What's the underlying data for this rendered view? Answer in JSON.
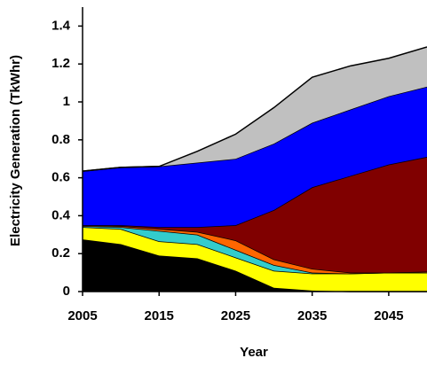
{
  "chart_data": {
    "type": "stacked_area",
    "x_label": "Year",
    "y_label": "Electricity Generation (TkWhr)",
    "x": [
      2005,
      2010,
      2015,
      2020,
      2025,
      2030,
      2035,
      2040,
      2045,
      2050
    ],
    "xlim": [
      2005,
      2050
    ],
    "xticks": [
      2005,
      2015,
      2025,
      2035,
      2045
    ],
    "ylim": [
      0,
      1.5
    ],
    "yticks": [
      0,
      0.2,
      0.4,
      0.6,
      0.8,
      1,
      1.2,
      1.4
    ],
    "series": [
      {
        "color": "#000000",
        "values": [
          0.275,
          0.25,
          0.19,
          0.175,
          0.11,
          0.02,
          0.005,
          0,
          0,
          0
        ]
      },
      {
        "color": "#ffff00",
        "values": [
          0.065,
          0.08,
          0.075,
          0.075,
          0.07,
          0.09,
          0.09,
          0.095,
          0.1,
          0.1
        ]
      },
      {
        "color": "#33cccc",
        "values": [
          0.005,
          0.01,
          0.055,
          0.05,
          0.04,
          0.03,
          0.005,
          0,
          0,
          0
        ]
      },
      {
        "color": "#ff6600",
        "values": [
          0.005,
          0.005,
          0.01,
          0.015,
          0.05,
          0.03,
          0.02,
          0.005,
          0,
          0.005
        ]
      },
      {
        "color": "#800000",
        "values": [
          0,
          0.005,
          0.01,
          0.025,
          0.08,
          0.26,
          0.43,
          0.51,
          0.57,
          0.605
        ]
      },
      {
        "color": "#0000ff",
        "values": [
          0.285,
          0.305,
          0.32,
          0.34,
          0.35,
          0.35,
          0.34,
          0.35,
          0.36,
          0.37
        ]
      },
      {
        "color": "#c0c0c0",
        "values": [
          0,
          0,
          0,
          0.06,
          0.13,
          0.19,
          0.24,
          0.23,
          0.2,
          0.21
        ]
      }
    ]
  }
}
